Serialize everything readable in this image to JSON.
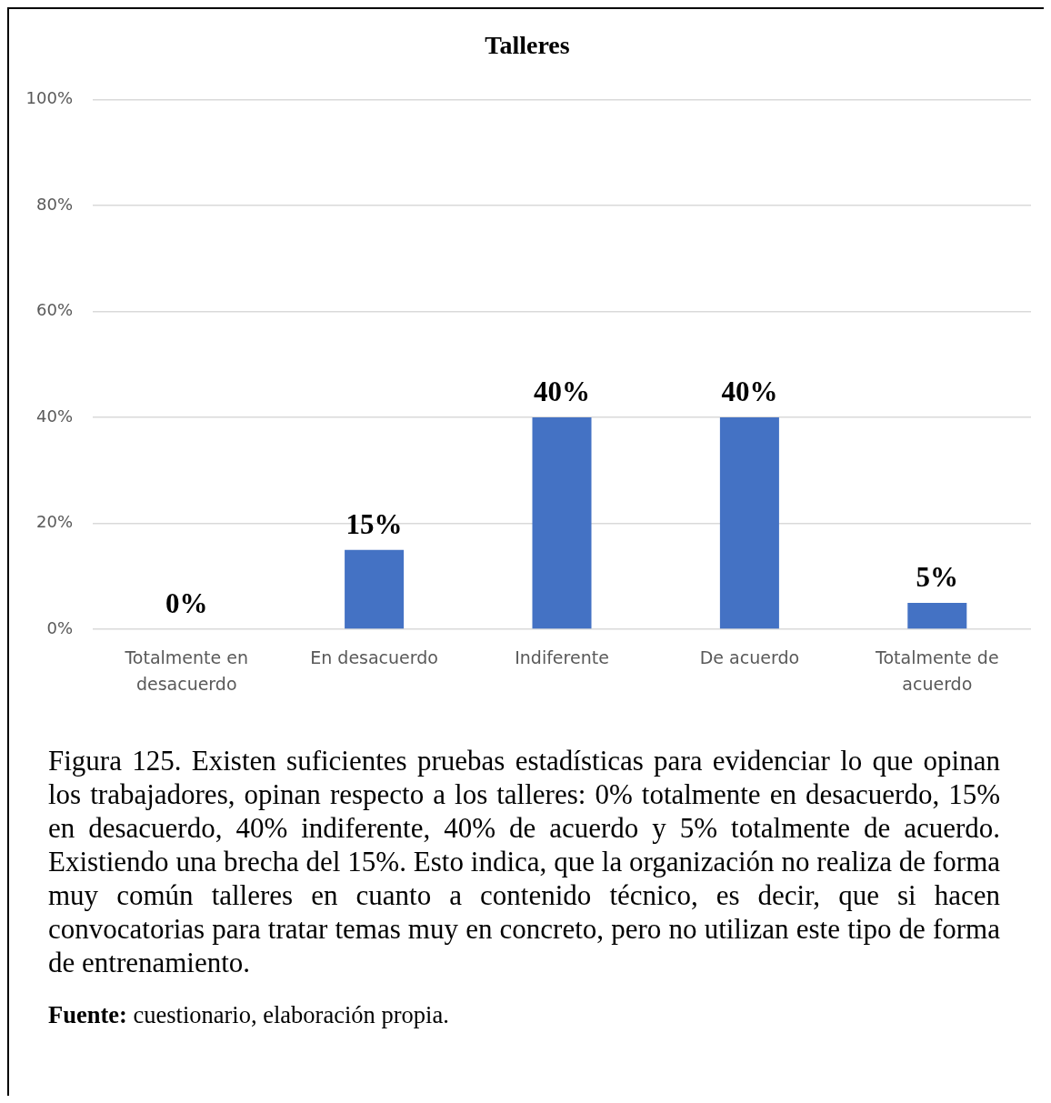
{
  "chart_data": {
    "type": "bar",
    "title": "Talleres",
    "categories": [
      "Totalmente en desacuerdo",
      "En desacuerdo",
      "Indiferente",
      "De acuerdo",
      "Totalmente de acuerdo"
    ],
    "values": [
      0,
      15,
      40,
      40,
      5
    ],
    "color": "#4472c4",
    "value_labels": [
      "0%",
      "15%",
      "40%",
      "40%",
      "5%"
    ],
    "ylim": [
      0,
      100
    ],
    "yticks": [
      {
        "value": 0,
        "label": "0%"
      },
      {
        "value": 20,
        "label": "20%"
      },
      {
        "value": 40,
        "label": "40%"
      },
      {
        "value": 60,
        "label": "60%"
      },
      {
        "value": 80,
        "label": "80%"
      },
      {
        "value": 100,
        "label": "100%"
      }
    ],
    "grid": "y",
    "annotations": [
      "Figura 125. Existen suficientes pruebas estadísticas para evidenciar lo que opinan los trabajadores, opinan respecto a los talleres: 0% totalmente en desacuerdo, 15% en desacuerdo, 40% indiferente, 40% de acuerdo y 5% totalmente de acuerdo. Existiendo una brecha del 15%. Esto indica, que la organización no realiza de forma muy común talleres en cuanto a contenido técnico, es decir, que si hacen convocatorias para tratar temas muy en concreto, pero no utilizan este tipo de forma de entrenamiento.",
      "Fuente:",
      "cuestionario, elaboración propia."
    ]
  }
}
